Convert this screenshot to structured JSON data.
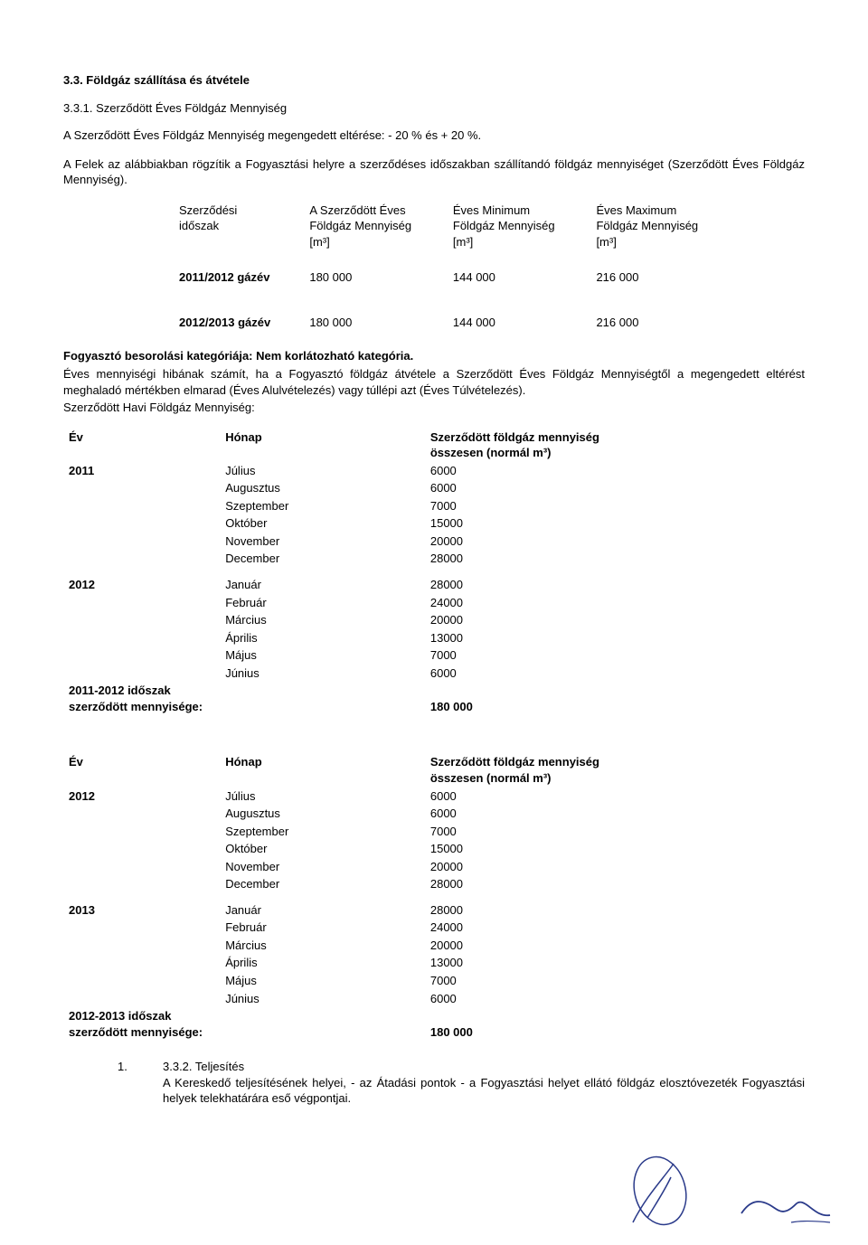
{
  "heading1": "3.3. Földgáz szállítása és átvétele",
  "heading2": "3.3.1. Szerződött Éves Földgáz Mennyiség",
  "para1": "A Szerződött Éves Földgáz Mennyiség megengedett eltérése: - 20 % és + 20 %.",
  "para2": "A Felek az alábbiakban rögzítik a Fogyasztási helyre a szerződéses időszakban szállítandó földgáz mennyiséget (Szerződött Éves Földgáz Mennyiség).",
  "summary_table": {
    "headers": {
      "c1a": "Szerződési",
      "c1b": "időszak",
      "c2a": "A Szerződött Éves",
      "c2b": "Földgáz Mennyiség",
      "c2c": "[m³]",
      "c3a": "Éves Minimum",
      "c3b": "Földgáz Mennyiség",
      "c3c": "[m³]",
      "c4a": "Éves Maximum",
      "c4b": "Földgáz Mennyiség",
      "c4c": "[m³]"
    },
    "rows": [
      {
        "period": "2011/2012 gázév",
        "contracted": "180 000",
        "min": "144 000",
        "max": "216 000"
      },
      {
        "period": "2012/2013 gázév",
        "contracted": "180 000",
        "min": "144 000",
        "max": "216 000"
      }
    ]
  },
  "category_line_prefix": "Fogyasztó besorolási kategóriája: ",
  "category_line_value": "Nem korlátozható kategória.",
  "para3": "Éves mennyiségi hibának számít, ha a Fogyasztó földgáz átvétele a Szerződött Éves Földgáz Mennyiségtől a megengedett eltérést meghaladó mértékben elmarad (Éves Alulvételezés) vagy túllépi azt (Éves Túlvételezés).",
  "para4": "Szerződött Havi Földgáz Mennyiség:",
  "monthly": {
    "head_year": "Év",
    "head_month": "Hónap",
    "head_value_l1": "Szerződött földgáz mennyiség",
    "head_value_l2": "összesen (normál m³)",
    "groups": [
      {
        "year": "2011",
        "rows": [
          {
            "month": "Július",
            "value": "6000"
          },
          {
            "month": "Augusztus",
            "value": "6000"
          },
          {
            "month": "Szeptember",
            "value": "7000"
          },
          {
            "month": "Október",
            "value": "15000"
          },
          {
            "month": "November",
            "value": "20000"
          },
          {
            "month": "December",
            "value": "28000"
          }
        ]
      },
      {
        "year": "2012",
        "rows": [
          {
            "month": "Január",
            "value": "28000"
          },
          {
            "month": "Február",
            "value": "24000"
          },
          {
            "month": "Március",
            "value": "20000"
          },
          {
            "month": "Április",
            "value": "13000"
          },
          {
            "month": "Május",
            "value": "7000"
          },
          {
            "month": "Június",
            "value": "6000"
          }
        ]
      }
    ],
    "total_label_l1": "2011-2012 időszak",
    "total_label_l2": "szerződött mennyisége:",
    "total_value": "180 000"
  },
  "monthly2": {
    "groups": [
      {
        "year": "2012",
        "rows": [
          {
            "month": "Július",
            "value": "6000"
          },
          {
            "month": "Augusztus",
            "value": "6000"
          },
          {
            "month": "Szeptember",
            "value": "7000"
          },
          {
            "month": "Október",
            "value": "15000"
          },
          {
            "month": "November",
            "value": "20000"
          },
          {
            "month": "December",
            "value": "28000"
          }
        ]
      },
      {
        "year": "2013",
        "rows": [
          {
            "month": "Január",
            "value": "28000"
          },
          {
            "month": "Február",
            "value": "24000"
          },
          {
            "month": "Március",
            "value": "20000"
          },
          {
            "month": "Április",
            "value": "13000"
          },
          {
            "month": "Május",
            "value": "7000"
          },
          {
            "month": "Június",
            "value": "6000"
          }
        ]
      }
    ],
    "total_label_l1": "2012-2013 időszak",
    "total_label_l2": "szerződött mennyisége:",
    "total_value": "180 000"
  },
  "footer": {
    "num": "1.",
    "heading": "3.3.2. Teljesítés",
    "text": "A Kereskedő teljesítésének helyei, - az Átadási pontok - a Fogyasztási helyet ellátó földgáz elosztóvezeték Fogyasztási helyek telekhatárára eső végpontjai."
  },
  "signature_stroke": "#2a3a8a"
}
